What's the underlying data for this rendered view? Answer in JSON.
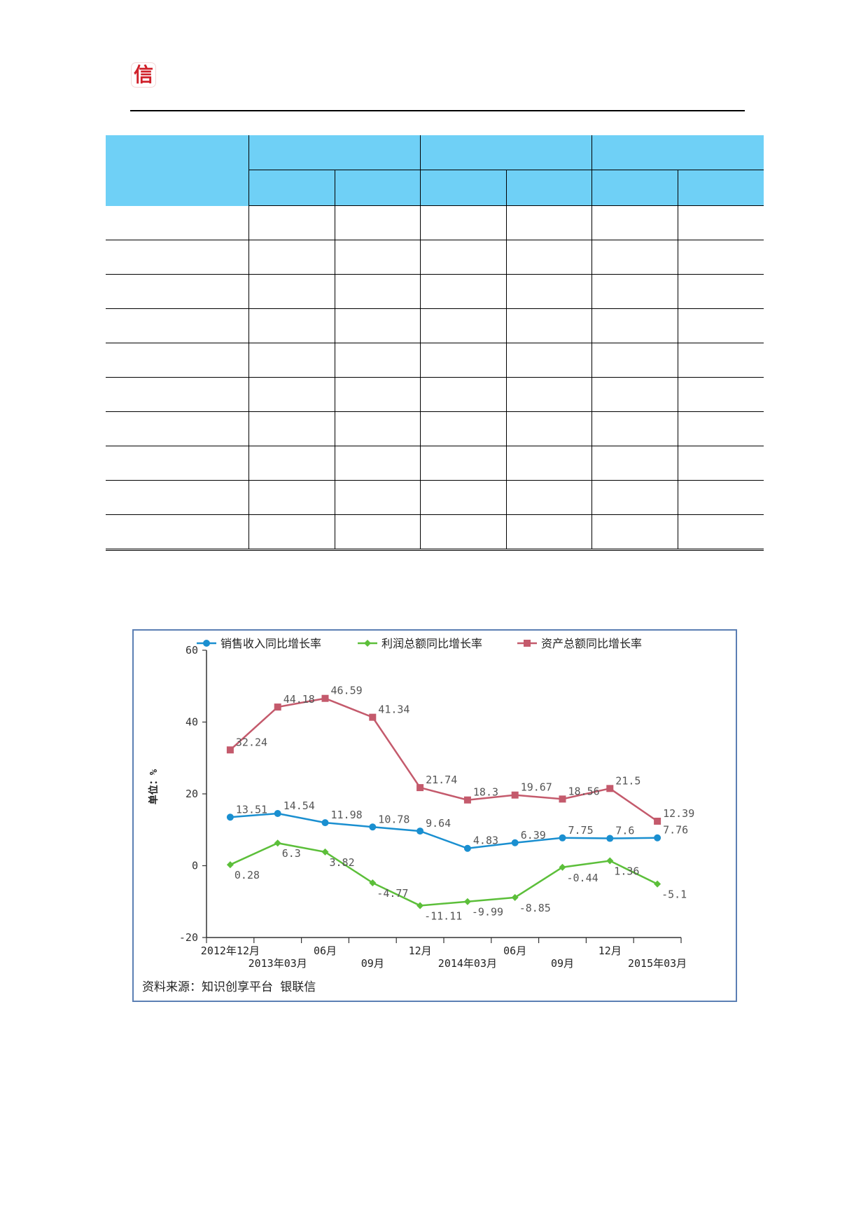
{
  "header": {
    "logo_char": "信"
  },
  "table": {
    "rows": 10
  },
  "chart_data": {
    "type": "line",
    "categories": [
      "2012年12月",
      "2013年03月",
      "06月",
      "09月",
      "12月",
      "2014年03月",
      "06月",
      "09月",
      "12月",
      "2015年03月"
    ],
    "ylabel": "单位：%",
    "ylim": [
      -20,
      60
    ],
    "yticks": [
      -20,
      0,
      20,
      40,
      60
    ],
    "legend_position": "top",
    "source": "资料来源：知识创享平台 银联信",
    "series": [
      {
        "name": "销售收入同比增长率",
        "color": "#1a8fd0",
        "marker": "circle",
        "values": [
          13.51,
          14.54,
          11.98,
          10.78,
          9.64,
          4.83,
          6.39,
          7.75,
          7.6,
          7.76
        ],
        "labels": [
          "13.51",
          "14.54",
          "11.98",
          "10.78",
          "9.64",
          "4.83",
          "6.39",
          "7.75",
          "7.6",
          "7.76"
        ]
      },
      {
        "name": "利润总额同比增长率",
        "color": "#5cbf3a",
        "marker": "diamond",
        "values": [
          0.28,
          6.3,
          3.82,
          -4.77,
          -11.11,
          -9.99,
          -8.85,
          -0.44,
          1.36,
          -5.1
        ],
        "labels": [
          "0.28",
          "6.3",
          "3.82",
          "-4.77",
          "-11.11",
          "-9.99",
          "-8.85",
          "-0.44",
          "1.36",
          "-5.1"
        ]
      },
      {
        "name": "资产总额同比增长率",
        "color": "#c45a6c",
        "marker": "square",
        "values": [
          32.24,
          44.18,
          46.59,
          41.34,
          21.74,
          18.3,
          19.67,
          18.56,
          21.5,
          12.39
        ],
        "labels": [
          "32.24",
          "44.18",
          "46.59",
          "41.34",
          "21.74",
          "18.3",
          "19.67",
          "18.56",
          "21.5",
          "12.39"
        ]
      }
    ]
  }
}
